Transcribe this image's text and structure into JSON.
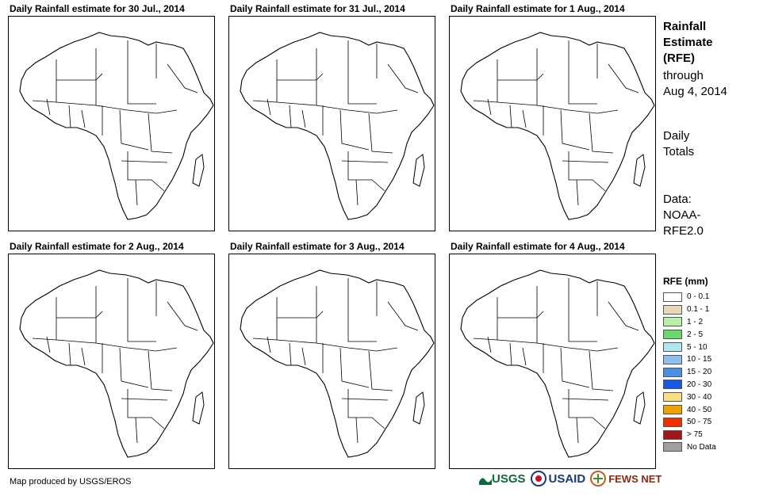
{
  "panels": [
    {
      "title": "Daily Rainfall estimate for 30 Jul., 2014"
    },
    {
      "title": "Daily Rainfall estimate for 31 Jul., 2014"
    },
    {
      "title": "Daily Rainfall estimate for 1 Aug., 2014"
    },
    {
      "title": "Daily Rainfall estimate for 2 Aug., 2014"
    },
    {
      "title": "Daily Rainfall estimate for 3 Aug., 2014"
    },
    {
      "title": "Daily Rainfall estimate for 4 Aug., 2014"
    }
  ],
  "side": {
    "title_line1": "Rainfall",
    "title_line2": "Estimate",
    "title_line3": "(RFE)",
    "through_label": "through",
    "date": "Aug 4, 2014",
    "totals_line1": "Daily",
    "totals_line2": "Totals",
    "data_line1": "Data:",
    "data_line2": "NOAA-",
    "data_line3": "RFE2.0"
  },
  "legend": {
    "title": "RFE (mm)",
    "items": [
      {
        "label": "0 - 0.1",
        "color": "#ffffff"
      },
      {
        "label": "0.1 - 1",
        "color": "#e8d8b8"
      },
      {
        "label": "1 - 2",
        "color": "#b8f0a8"
      },
      {
        "label": "2 - 5",
        "color": "#6ad86a"
      },
      {
        "label": "5 - 10",
        "color": "#b0e8f0"
      },
      {
        "label": "10 - 15",
        "color": "#8cc0f0"
      },
      {
        "label": "15 - 20",
        "color": "#4a90e8"
      },
      {
        "label": "20 - 30",
        "color": "#1858e0"
      },
      {
        "label": "30 - 40",
        "color": "#f8e080"
      },
      {
        "label": "40 - 50",
        "color": "#f0a000"
      },
      {
        "label": "50 - 75",
        "color": "#f03000"
      },
      {
        "label": "> 75",
        "color": "#a01818"
      },
      {
        "label": "No Data",
        "color": "#a0a0a0"
      }
    ]
  },
  "footer": {
    "credit": "Map produced by USGS/EROS"
  },
  "logos": {
    "usgs": "USGS",
    "usaid": "USAID",
    "fewsnet": "FEWS NET"
  }
}
